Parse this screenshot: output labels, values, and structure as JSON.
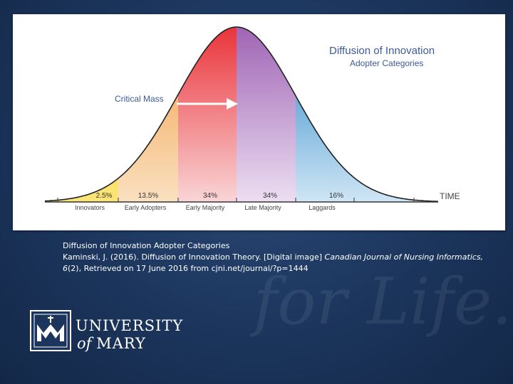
{
  "diagram": {
    "title": "Diffusion of Innovation",
    "subtitle": "Adopter Categories",
    "critical_mass_label": "Critical Mass",
    "time_label": "TIME",
    "segments": [
      {
        "label": "Innovators",
        "percent": "2.5%",
        "color": "#f7d21e"
      },
      {
        "label": "Early Adopters",
        "percent": "13.5%",
        "color": "#f0a24a"
      },
      {
        "label": "Early Majority",
        "percent": "34%",
        "color": "#ea3a3f"
      },
      {
        "label": "Late Majority",
        "percent": "34%",
        "color": "#a26ab5"
      },
      {
        "label": "Laggards",
        "percent": "16%",
        "color": "#2f8fcf"
      }
    ]
  },
  "citation": {
    "line1": "Diffusion of Innovation Adopter Categories",
    "line2_prefix": "Kaminski, J. (2016). Diffusion of Innovation Theory. [Digital image] ",
    "journal": "Canadian Journal of Nursing Informatics, 6",
    "issue": "(2), Retrieved on 17 June 2016 from cjni.net/journal/?p=1444"
  },
  "watermark": "for Life.",
  "logo": {
    "line1": "UNIVERSITY",
    "line2_of": "of",
    "line2_mary": "MARY"
  },
  "colors": {
    "background": "#1c355c",
    "accent": "#3d5a9a"
  }
}
